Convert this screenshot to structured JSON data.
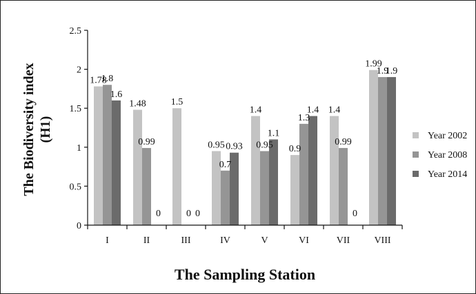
{
  "chart_data": {
    "type": "bar",
    "title": "",
    "xlabel": "The Sampling Station",
    "ylabel_line1": "The Biodiversity index",
    "ylabel_line2": "(H1)",
    "ylim": [
      0,
      2.5
    ],
    "yticks": [
      "0",
      "0.5",
      "1",
      "1.5",
      "2",
      "2.5"
    ],
    "categories": [
      "I",
      "II",
      "III",
      "IV",
      "V",
      "VI",
      "VII",
      "VIII"
    ],
    "series": [
      {
        "name": "Year 2002",
        "color": "#c3c3c3",
        "values": [
          1.78,
          1.48,
          1.5,
          0.95,
          1.4,
          0.9,
          1.4,
          1.99
        ],
        "labels": [
          "1.78",
          "1.48",
          "1.5",
          "0.95",
          "1.4",
          "0.9",
          "1.4",
          "1.99"
        ]
      },
      {
        "name": "Year 2008",
        "color": "#959595",
        "values": [
          1.8,
          0.99,
          0,
          0.7,
          0.95,
          1.3,
          0.99,
          1.9
        ],
        "labels": [
          "1.8",
          "0.99",
          "0",
          "0.7",
          "0.95",
          "1.3",
          "0.99",
          "1.9"
        ]
      },
      {
        "name": "Year 2014",
        "color": "#6b6b6b",
        "values": [
          1.6,
          0,
          0,
          0.93,
          1.1,
          1.4,
          0,
          1.9
        ],
        "labels": [
          "1.6",
          "0",
          "0",
          "0.93",
          "1.1",
          "1.4",
          "0",
          "1.9"
        ]
      }
    ],
    "legend_position": "right",
    "grid": false
  }
}
